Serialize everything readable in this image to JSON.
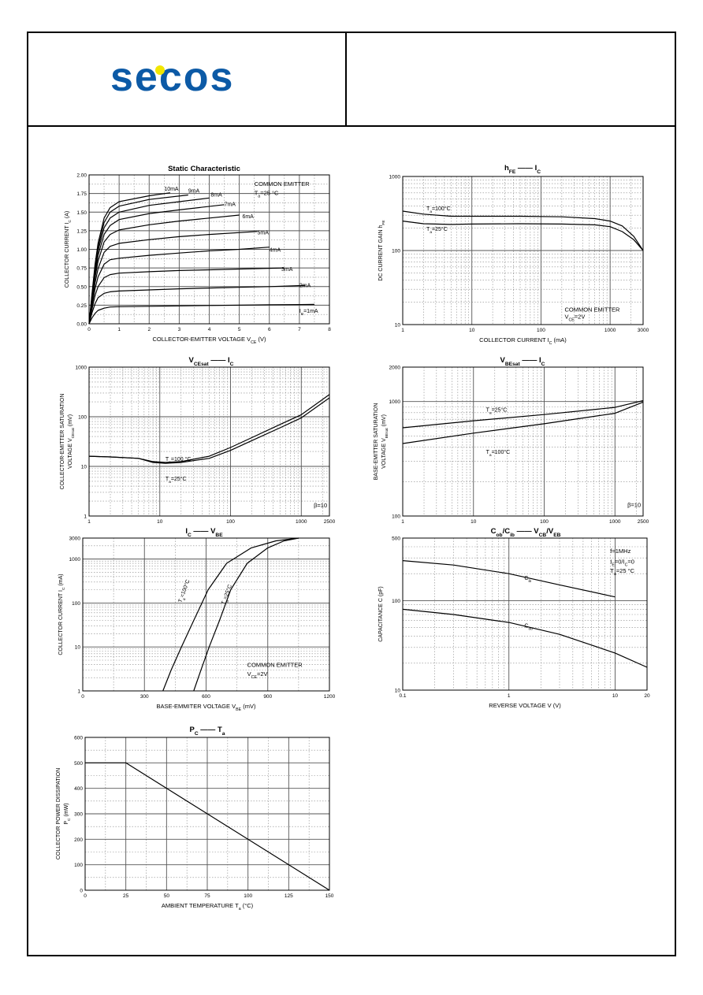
{
  "logo": {
    "text": "secos",
    "color": "#0c5aa6",
    "dot_color": "#f2e600"
  },
  "colors": {
    "line": "#000000",
    "grid_major": "#555555",
    "grid_minor": "#888888"
  },
  "chart_data": [
    {
      "id": "static",
      "type": "line",
      "title": "Static Characteristic",
      "xlabel": "COLLECTOR-EMITTER VOLTAGE   V",
      "xlabel_sub": "CE",
      "xlabel_unit": "(V)",
      "ylabel": "COLLECTOR CURRENT   I",
      "ylabel_sub": "C",
      "ylabel_unit": "(A)",
      "x_scale": "linear",
      "y_scale": "linear",
      "xlim": [
        0,
        8
      ],
      "ylim": [
        0,
        2
      ],
      "x_ticks": [
        0,
        1,
        2,
        3,
        4,
        5,
        6,
        7,
        8
      ],
      "x_tick_labels": [
        "0",
        "1",
        "2",
        "3",
        "4",
        "5",
        "6",
        "7",
        "8"
      ],
      "y_ticks": [
        0,
        0.25,
        0.5,
        0.75,
        1.0,
        1.25,
        1.5,
        1.75,
        2.0
      ],
      "y_tick_labels": [
        "0.00",
        "0.25",
        "0.50",
        "0.75",
        "1.00",
        "1.25",
        "1.50",
        "1.75",
        "2.00"
      ],
      "annotations": [
        {
          "text": "COMMON EMITTER",
          "x": 5.5,
          "y": 1.85
        },
        {
          "text": "T",
          "sub": "a",
          "rest": "=25 °C",
          "x": 5.5,
          "y": 1.73
        }
      ],
      "series": [
        {
          "name": "I_B=1mA",
          "label": "I",
          "label_sub": "B",
          "label_rest": "=1mA",
          "label_at": [
            7.0,
            0.15
          ],
          "x": [
            0,
            0.1,
            0.2,
            0.3,
            0.5,
            0.7,
            1.0,
            2,
            3,
            4,
            5,
            6,
            7.5
          ],
          "y": [
            0,
            0.08,
            0.14,
            0.18,
            0.21,
            0.225,
            0.23,
            0.235,
            0.24,
            0.245,
            0.25,
            0.255,
            0.26
          ]
        },
        {
          "name": "2mA",
          "label": "2mA",
          "label_at": [
            7.0,
            0.49
          ],
          "x": [
            0,
            0.1,
            0.2,
            0.3,
            0.5,
            0.7,
            1.0,
            2,
            3,
            4,
            5,
            6,
            7.2
          ],
          "y": [
            0,
            0.15,
            0.27,
            0.35,
            0.41,
            0.43,
            0.44,
            0.455,
            0.47,
            0.48,
            0.49,
            0.5,
            0.515
          ]
        },
        {
          "name": "3mA",
          "label": "3mA",
          "label_at": [
            6.4,
            0.71
          ],
          "x": [
            0,
            0.1,
            0.2,
            0.3,
            0.5,
            0.7,
            1.0,
            2,
            3,
            4,
            5,
            6.5
          ],
          "y": [
            0,
            0.2,
            0.38,
            0.5,
            0.62,
            0.66,
            0.68,
            0.7,
            0.715,
            0.725,
            0.735,
            0.75
          ]
        },
        {
          "name": "4mA",
          "label": "4mA",
          "label_at": [
            6.0,
            0.97
          ],
          "x": [
            0,
            0.1,
            0.2,
            0.3,
            0.5,
            0.7,
            1.0,
            2,
            3,
            4,
            5,
            6.0
          ],
          "y": [
            0,
            0.25,
            0.47,
            0.63,
            0.8,
            0.86,
            0.88,
            0.92,
            0.95,
            0.98,
            1.0,
            1.03
          ]
        },
        {
          "name": "5mA",
          "label": "5mA",
          "label_at": [
            5.6,
            1.2
          ],
          "x": [
            0,
            0.1,
            0.2,
            0.3,
            0.5,
            0.7,
            1.0,
            2,
            3,
            4,
            5.6
          ],
          "y": [
            0,
            0.29,
            0.55,
            0.74,
            0.96,
            1.04,
            1.08,
            1.13,
            1.17,
            1.2,
            1.24
          ]
        },
        {
          "name": "6mA",
          "label": "6mA",
          "label_at": [
            5.1,
            1.42
          ],
          "x": [
            0,
            0.1,
            0.2,
            0.3,
            0.5,
            0.7,
            1.0,
            2,
            3,
            4,
            5.0
          ],
          "y": [
            0,
            0.32,
            0.62,
            0.84,
            1.1,
            1.2,
            1.26,
            1.33,
            1.38,
            1.42,
            1.46
          ]
        },
        {
          "name": "7mA",
          "label": "7mA",
          "label_at": [
            4.5,
            1.58
          ],
          "x": [
            0,
            0.1,
            0.2,
            0.3,
            0.5,
            0.7,
            1.0,
            2,
            3,
            4.5
          ],
          "y": [
            0,
            0.35,
            0.67,
            0.92,
            1.2,
            1.32,
            1.4,
            1.48,
            1.53,
            1.6
          ]
        },
        {
          "name": "8mA",
          "label": "8mA",
          "label_at": [
            4.05,
            1.71
          ],
          "x": [
            0,
            0.1,
            0.2,
            0.3,
            0.5,
            0.7,
            1.0,
            2,
            3,
            4.0
          ],
          "y": [
            0,
            0.37,
            0.72,
            0.98,
            1.29,
            1.42,
            1.5,
            1.59,
            1.64,
            1.69
          ]
        },
        {
          "name": "9mA",
          "label": "9mA",
          "label_at": [
            3.3,
            1.76
          ],
          "x": [
            0,
            0.1,
            0.2,
            0.3,
            0.5,
            0.7,
            1.0,
            2,
            3.3
          ],
          "y": [
            0,
            0.39,
            0.76,
            1.03,
            1.36,
            1.5,
            1.58,
            1.67,
            1.73
          ]
        },
        {
          "name": "10mA",
          "label": "10mA",
          "label_at": [
            2.5,
            1.79
          ],
          "x": [
            0,
            0.1,
            0.2,
            0.3,
            0.5,
            0.7,
            1.0,
            2,
            2.7
          ],
          "y": [
            0,
            0.41,
            0.8,
            1.08,
            1.42,
            1.56,
            1.64,
            1.72,
            1.76
          ]
        }
      ]
    },
    {
      "id": "hfe",
      "type": "line",
      "title": "h",
      "title_sub": "FE",
      "title_rest": "I",
      "title_rest_sub": "C",
      "xlabel": "COLLECTOR CURRENT   I",
      "xlabel_sub": "C",
      "xlabel_unit": "(mA)",
      "ylabel": "DC CURRENT GAIN   h",
      "ylabel_sub": "FE",
      "x_scale": "log",
      "y_scale": "log",
      "xlim": [
        1,
        3000
      ],
      "ylim": [
        10,
        1000
      ],
      "x_ticks": [
        1,
        10,
        100,
        1000,
        3000
      ],
      "x_tick_labels": [
        "1",
        "10",
        "100",
        "1000",
        "3000"
      ],
      "y_ticks": [
        10,
        100,
        1000
      ],
      "y_tick_labels": [
        "10",
        "100",
        "1000"
      ],
      "annotations": [
        {
          "text": "COMMON EMITTER",
          "x": 220,
          "y": 15
        },
        {
          "text": "V",
          "sub": "CE",
          "rest": "=2V",
          "x": 220,
          "y": 12
        }
      ],
      "series": [
        {
          "name": "Ta=100°C",
          "label": "T",
          "label_sub": "a",
          "label_rest": "=100°C",
          "label_at": [
            2.2,
            350
          ],
          "x": [
            1,
            2,
            5,
            10,
            50,
            200,
            600,
            1000,
            1500,
            2200,
            3000
          ],
          "y": [
            340,
            310,
            290,
            290,
            290,
            285,
            270,
            250,
            215,
            155,
            100
          ]
        },
        {
          "name": "Ta=25°C",
          "label": "T",
          "label_sub": "a",
          "label_rest": "=25°C",
          "label_at": [
            2.2,
            185
          ],
          "x": [
            1,
            2,
            5,
            10,
            50,
            200,
            600,
            1000,
            1500,
            2200,
            3000
          ],
          "y": [
            250,
            230,
            225,
            228,
            230,
            228,
            222,
            210,
            180,
            140,
            100
          ]
        }
      ]
    },
    {
      "id": "vcesat",
      "type": "line",
      "title": "V",
      "title_sub": "CEsat",
      "title_rest": "I",
      "title_rest_sub": "C",
      "xlabel": "",
      "ylabel": "COLLECTOR-EMITTER SATURATION",
      "ylabel2": "VOLTAGE   V",
      "ylabel2_sub": "CEsat",
      "ylabel2_unit": "(mV)",
      "x_scale": "log",
      "y_scale": "log",
      "xlim": [
        1,
        2500
      ],
      "ylim": [
        1,
        1000
      ],
      "x_ticks": [
        1,
        10,
        100,
        1000,
        2500
      ],
      "x_tick_labels": [
        "1",
        "10",
        "100",
        "1000",
        "2500"
      ],
      "y_ticks": [
        1,
        10,
        100,
        1000
      ],
      "y_tick_labels": [
        "1",
        "10",
        "100",
        "1000"
      ],
      "annotations": [
        {
          "text": "β=10",
          "x": 1500,
          "y": 1.5
        }
      ],
      "series": [
        {
          "name": "Ta=100°C",
          "label": "T",
          "label_sub": "a",
          "label_rest": "=100 °C",
          "label_at": [
            12,
            13
          ],
          "x": [
            1,
            2,
            5,
            8,
            12,
            20,
            50,
            100,
            200,
            500,
            1000,
            2500
          ],
          "y": [
            16,
            15.5,
            14.5,
            12.5,
            12,
            12.5,
            16,
            24,
            38,
            70,
            110,
            280
          ]
        },
        {
          "name": "Ta=25°C",
          "label": "T",
          "label_sub": "a",
          "label_rest": "=25°C",
          "label_at": [
            12,
            5.2
          ],
          "x": [
            1,
            2,
            5,
            8,
            12,
            20,
            50,
            100,
            200,
            500,
            1000,
            2500
          ],
          "y": [
            16,
            15.5,
            14.5,
            12,
            11.5,
            12,
            14.5,
            21,
            33,
            60,
            95,
            240
          ]
        }
      ]
    },
    {
      "id": "vbesat",
      "type": "line",
      "title": "V",
      "title_sub": "BEsat",
      "title_rest": "I",
      "title_rest_sub": "C",
      "xlabel": "",
      "ylabel": "BASE-EMITTER SATURATION",
      "ylabel2": "VOLTAGE   V",
      "ylabel2_sub": "BEsat",
      "ylabel2_unit": "(mV)",
      "x_scale": "log",
      "y_scale": "log",
      "xlim": [
        1,
        2500
      ],
      "ylim": [
        100,
        2000
      ],
      "x_ticks": [
        1,
        10,
        100,
        1000,
        2500
      ],
      "x_tick_labels": [
        "1",
        "10",
        "100",
        "1000",
        "2500"
      ],
      "y_ticks": [
        100,
        1000,
        2000
      ],
      "y_tick_labels": [
        "100",
        "1000",
        "2000"
      ],
      "annotations": [
        {
          "text": "β=10",
          "x": 1500,
          "y": 120
        }
      ],
      "series": [
        {
          "name": "Ta=25°C",
          "label": "T",
          "label_sub": "a",
          "label_rest": "=25°C",
          "label_at": [
            15,
            820
          ],
          "x": [
            1,
            10,
            100,
            1000,
            2500
          ],
          "y": [
            590,
            680,
            770,
            890,
            1020
          ]
        },
        {
          "name": "Ta=100°C",
          "label": "T",
          "label_sub": "a",
          "label_rest": "=100°C",
          "label_at": [
            15,
            350
          ],
          "x": [
            1,
            10,
            100,
            1000,
            2500
          ],
          "y": [
            430,
            530,
            640,
            790,
            990
          ]
        }
      ]
    },
    {
      "id": "icvbe",
      "type": "line",
      "title": "I",
      "title_sub": "C",
      "title_rest": "V",
      "title_rest_sub": "BE",
      "xlabel": "BASE-EMMITER VOLTAGE   V",
      "xlabel_sub": "BE",
      "xlabel_unit": "(mV)",
      "ylabel": "COLLECTOR CURRENT   I",
      "ylabel_sub": "C",
      "ylabel_unit": "(mA)",
      "x_scale": "linear",
      "y_scale": "log",
      "xlim": [
        0,
        1200
      ],
      "ylim": [
        1,
        3000
      ],
      "x_ticks": [
        0,
        300,
        600,
        900,
        1200
      ],
      "x_tick_labels": [
        "0",
        "300",
        "600",
        "900",
        "1200"
      ],
      "y_ticks": [
        1,
        10,
        100,
        1000,
        3000
      ],
      "y_tick_labels": [
        "1",
        "10",
        "100",
        "1000",
        "3000"
      ],
      "annotations": [
        {
          "text": "COMMON EMITTER",
          "x": 800,
          "y": 3.5
        },
        {
          "text": "V",
          "sub": "CE",
          "rest": "=2V",
          "x": 800,
          "y": 2.2
        }
      ],
      "series": [
        {
          "name": "Ta=100°C",
          "label": "T",
          "label_sub": "a",
          "label_rest": "=100°C",
          "label_at": [
            480,
            100
          ],
          "x": [
            390,
            430,
            480,
            540,
            610,
            700,
            820,
            940,
            1050
          ],
          "y": [
            1,
            3,
            10,
            40,
            200,
            800,
            1800,
            2600,
            3000
          ]
        },
        {
          "name": "Ta=25°C",
          "label": "T",
          "label_sub": "a",
          "label_rest": "=25°C",
          "label_at": [
            690,
            90
          ],
          "x": [
            540,
            575,
            615,
            665,
            720,
            800,
            900,
            980,
            1050
          ],
          "y": [
            1,
            3,
            10,
            40,
            200,
            800,
            1800,
            2600,
            3000
          ]
        }
      ]
    },
    {
      "id": "capacitance",
      "type": "line",
      "title": "C",
      "title_sub": "ob",
      "title_mid": "/C",
      "title_mid_sub": "ib",
      "title_rest": "V",
      "title_rest_sub": "CB",
      "title_tail": "/V",
      "title_tail_sub": "EB",
      "xlabel": "REVERSE  VOLTAGE   V   (V)",
      "ylabel": "CAPACITANCE   C   (pF)",
      "x_scale": "log",
      "y_scale": "log",
      "xlim": [
        0.1,
        20
      ],
      "ylim": [
        10,
        500
      ],
      "x_ticks": [
        0.1,
        1,
        10,
        20
      ],
      "x_tick_labels": [
        "0.1",
        "1",
        "10",
        "20"
      ],
      "y_ticks": [
        10,
        100,
        500
      ],
      "y_tick_labels": [
        "10",
        "100",
        "500"
      ],
      "annotations": [
        {
          "text": "f=1MHz",
          "x": 9,
          "y": 340
        },
        {
          "text": "I",
          "sub": "E",
          "rest": "=0/I",
          "sub2": "C",
          "rest2": "=0",
          "x": 9,
          "y": 260
        },
        {
          "text": "T",
          "sub": "a",
          "rest": "=25 °C",
          "x": 9,
          "y": 205
        }
      ],
      "series": [
        {
          "name": "Cib",
          "label": "C",
          "label_sub": "ib",
          "label_at": [
            1.4,
            170
          ],
          "x": [
            0.1,
            0.3,
            1,
            3,
            10
          ],
          "y": [
            280,
            250,
            200,
            150,
            110
          ]
        },
        {
          "name": "Cob",
          "label": "C",
          "label_sub": "ob",
          "label_at": [
            1.4,
            50
          ],
          "x": [
            0.1,
            0.3,
            1,
            3,
            10,
            20
          ],
          "y": [
            80,
            70,
            57,
            42,
            26,
            18
          ]
        }
      ]
    },
    {
      "id": "pc",
      "type": "line",
      "title": "P",
      "title_sub": "C",
      "title_rest": "T",
      "title_rest_sub": "a",
      "xlabel": "AMBIENT  TEMPERATURE   T",
      "xlabel_sub": "a",
      "xlabel_unit": "(°C)",
      "ylabel": "COLLECTOR POWER DISSIPATION",
      "ylabel2": "P",
      "ylabel2_sub": "C",
      "ylabel2_unit": "(mW)",
      "x_scale": "linear",
      "y_scale": "linear",
      "xlim": [
        0,
        150
      ],
      "ylim": [
        0,
        600
      ],
      "x_ticks": [
        0,
        25,
        50,
        75,
        100,
        125,
        150
      ],
      "x_tick_labels": [
        "0",
        "25",
        "50",
        "75",
        "100",
        "125",
        "150"
      ],
      "y_ticks": [
        0,
        100,
        200,
        300,
        400,
        500,
        600
      ],
      "y_tick_labels": [
        "0",
        "100",
        "200",
        "300",
        "400",
        "500",
        "600"
      ],
      "series": [
        {
          "name": "Pc",
          "x": [
            0,
            25,
            150
          ],
          "y": [
            500,
            500,
            0
          ]
        }
      ]
    }
  ]
}
